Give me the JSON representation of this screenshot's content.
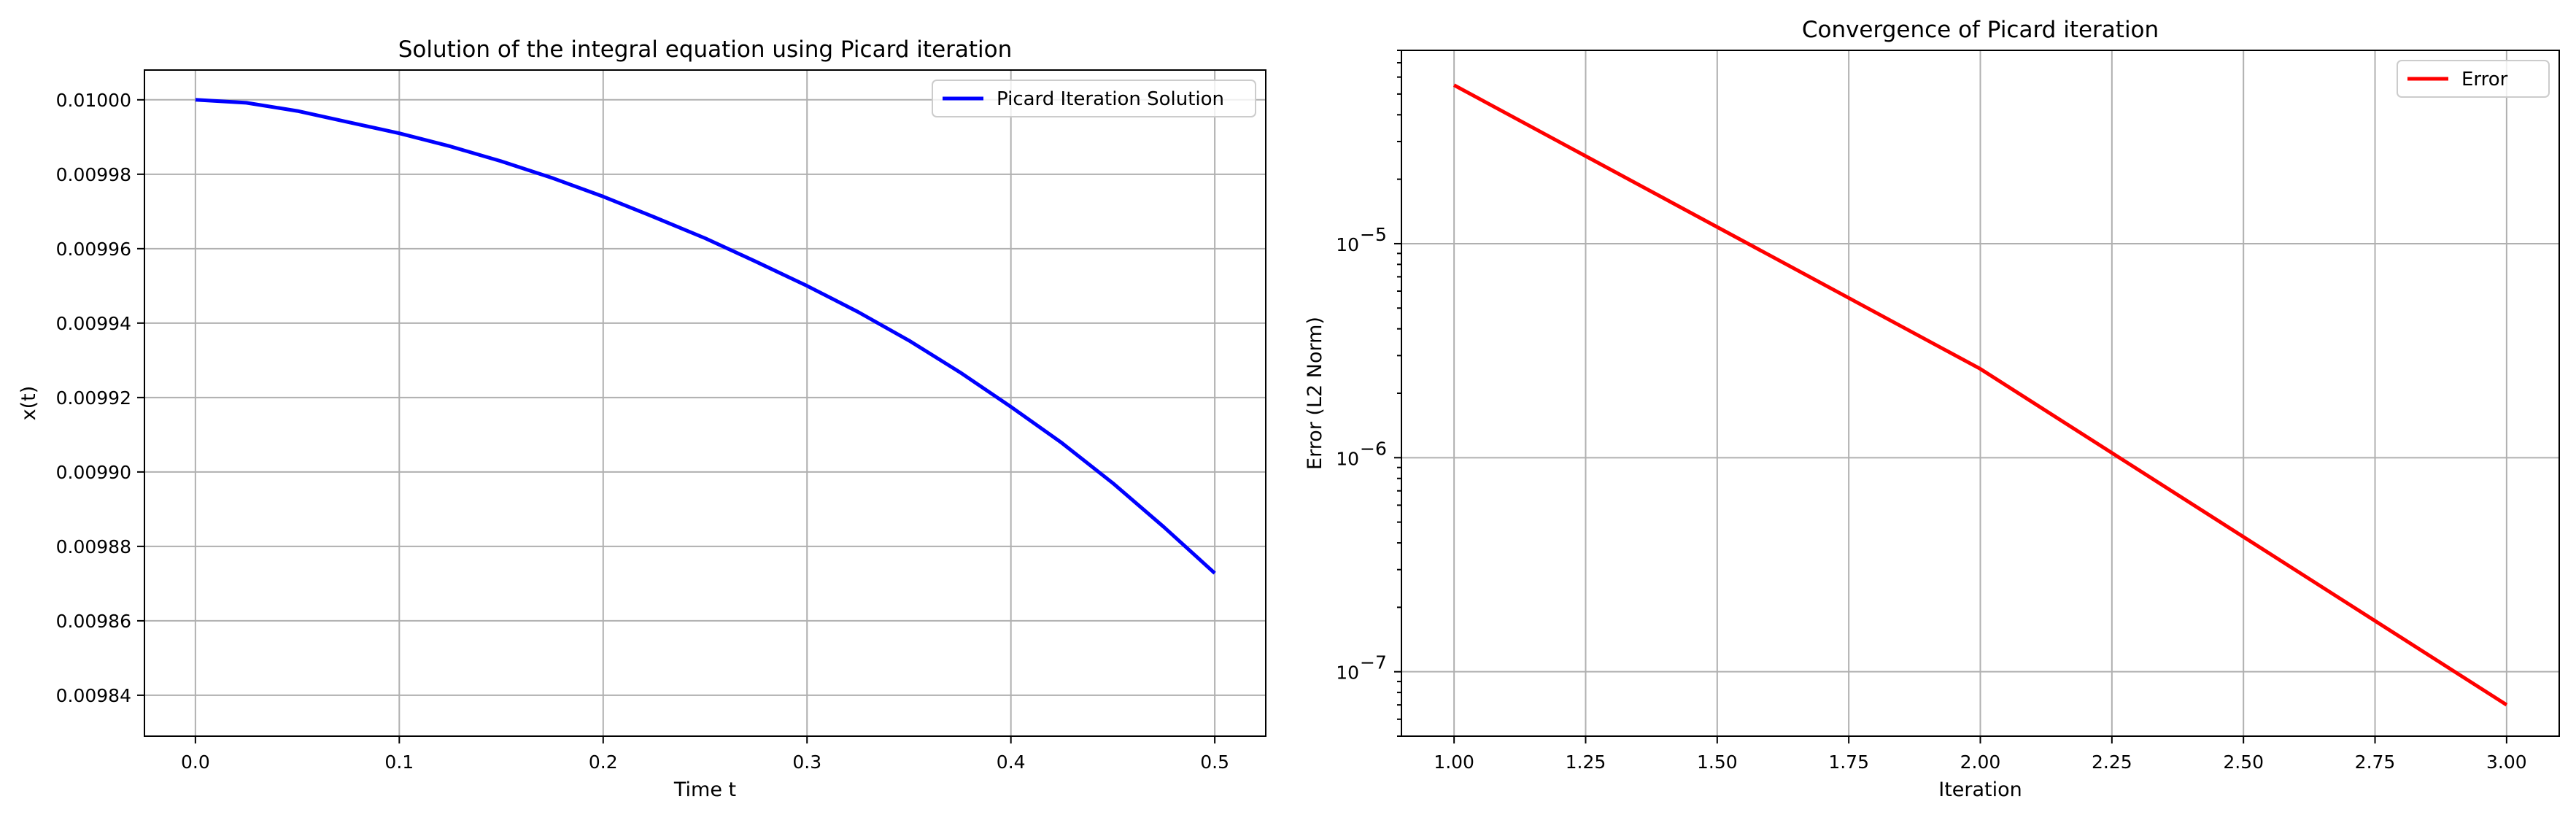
{
  "chart_data": [
    {
      "type": "line",
      "title": "Solution of the integral equation using Picard iteration",
      "xlabel": "Time t",
      "ylabel": "x(t)",
      "xlim": [
        -0.025,
        0.525
      ],
      "ylim": [
        0.009829,
        0.010008
      ],
      "xticks": [
        0.0,
        0.1,
        0.2,
        0.3,
        0.4,
        0.5
      ],
      "xtick_labels": [
        "0.0",
        "0.1",
        "0.2",
        "0.3",
        "0.4",
        "0.5"
      ],
      "yticks": [
        0.00984,
        0.00986,
        0.00988,
        0.0099,
        0.00992,
        0.00994,
        0.00996,
        0.00998,
        0.01
      ],
      "ytick_labels": [
        "0.00984",
        "0.00986",
        "0.00988",
        "0.00990",
        "0.00992",
        "0.00994",
        "0.00996",
        "0.00998",
        "0.01000"
      ],
      "grid": true,
      "legend": "top-right",
      "series": [
        {
          "name": "Picard Iteration Solution",
          "color": "#0000ff",
          "x": [
            0.0,
            0.025,
            0.05,
            0.075,
            0.1,
            0.125,
            0.15,
            0.175,
            0.2,
            0.225,
            0.25,
            0.275,
            0.3,
            0.325,
            0.35,
            0.375,
            0.4,
            0.425,
            0.45,
            0.475,
            0.5
          ],
          "y": [
            0.01,
            0.0099992,
            0.009997,
            0.009994,
            0.009991,
            0.0099875,
            0.0099835,
            0.009979,
            0.009974,
            0.0099685,
            0.0099628,
            0.0099565,
            0.00995,
            0.009943,
            0.0099353,
            0.0099268,
            0.0099175,
            0.0099078,
            0.009897,
            0.0098852,
            0.0098728
          ]
        }
      ]
    },
    {
      "type": "line",
      "title": "Convergence of Picard iteration",
      "xlabel": "Iteration",
      "ylabel": "Error (L2 Norm)",
      "yscale": "log",
      "xlim": [
        0.9,
        3.1
      ],
      "ylim": [
        5e-08,
        8e-05
      ],
      "xticks": [
        1.0,
        1.25,
        1.5,
        1.75,
        2.0,
        2.25,
        2.5,
        2.75,
        3.0
      ],
      "xtick_labels": [
        "1.00",
        "1.25",
        "1.50",
        "1.75",
        "2.00",
        "2.25",
        "2.50",
        "2.75",
        "3.00"
      ],
      "yticks": [
        1e-07,
        1e-06,
        1e-05
      ],
      "ytick_labels": [
        {
          "base": "10",
          "exp": "−7"
        },
        {
          "base": "10",
          "exp": "−6"
        },
        {
          "base": "10",
          "exp": "−5"
        }
      ],
      "grid": true,
      "legend": "top-right",
      "series": [
        {
          "name": "Error",
          "color": "#ff0000",
          "x": [
            1.0,
            2.0,
            3.0
          ],
          "y": [
            5.5e-05,
            2.6e-06,
            7e-08
          ]
        }
      ]
    }
  ]
}
